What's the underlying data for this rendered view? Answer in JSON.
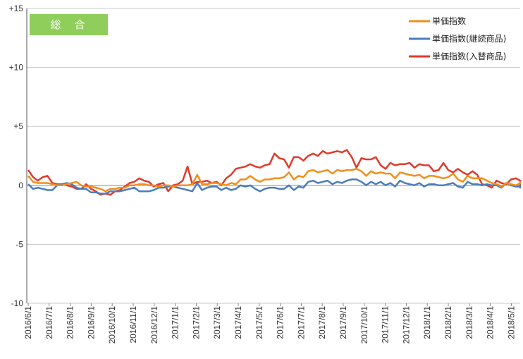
{
  "badge": {
    "label": "総　合",
    "color": "#8fce5a"
  },
  "chart_data": {
    "type": "line",
    "title": "",
    "xlabel": "",
    "ylabel": "",
    "ylim": [
      -10,
      15
    ],
    "yticks": [
      {
        "value": 15,
        "label": "+15"
      },
      {
        "value": 10,
        "label": "+10"
      },
      {
        "value": 5,
        "label": "+5"
      },
      {
        "value": 0,
        "label": "0"
      },
      {
        "value": -5,
        "label": "-5"
      },
      {
        "value": -10,
        "label": "-10"
      }
    ],
    "x_tick_labels": [
      "2016/6/1",
      "2016/7/1",
      "2016/8/1",
      "2016/9/1",
      "2016/10/1",
      "2016/11/1",
      "2016/12/1",
      "2017/1/1",
      "2017/2/1",
      "2017/3/1",
      "2017/4/1",
      "2017/5/1",
      "2017/6/1",
      "2017/7/1",
      "2017/8/1",
      "2017/9/1",
      "2017/10/1",
      "2017/11/1",
      "2017/12/1",
      "2018/1/1",
      "2018/2/1",
      "2018/3/1",
      "2018/4/1",
      "2018/5/1"
    ],
    "grid": "horizontal",
    "legend_position": "top-right",
    "points_per_month": 4.35,
    "series": [
      {
        "name": "単価指数",
        "color": "#f28e1c",
        "values": [
          0.8,
          0.3,
          0.2,
          0.2,
          0.2,
          0.1,
          0.0,
          0.0,
          0.1,
          0.2,
          0.3,
          0.0,
          -0.1,
          -0.1,
          -0.2,
          -0.3,
          -0.5,
          -0.3,
          -0.3,
          -0.2,
          -0.2,
          0.0,
          0.0,
          0.1,
          0.1,
          0.0,
          0.0,
          -0.1,
          0.0,
          0.0,
          -0.1,
          0.0,
          0.0,
          0.0,
          0.1,
          0.9,
          0.1,
          0.1,
          0.2,
          0.2,
          0.1,
          0.0,
          0.2,
          0.1,
          0.5,
          0.5,
          0.8,
          0.5,
          0.3,
          0.5,
          0.5,
          0.6,
          0.6,
          0.7,
          1.1,
          0.5,
          0.8,
          0.7,
          1.2,
          1.3,
          1.1,
          1.2,
          1.3,
          1.0,
          1.3,
          1.2,
          1.3,
          1.3,
          1.4,
          1.2,
          0.8,
          1.2,
          1.0,
          1.1,
          1.0,
          1.0,
          0.6,
          1.1,
          1.0,
          0.9,
          0.8,
          0.9,
          0.6,
          0.8,
          0.8,
          0.7,
          0.6,
          0.7,
          1.0,
          0.5,
          0.3,
          0.8,
          0.6,
          0.6,
          0.6,
          0.4,
          0.2,
          0.1,
          -0.1,
          0.2,
          0.1,
          0.0,
          0.2,
          0.3,
          0.3,
          0.1,
          0.1,
          0.1
        ]
      },
      {
        "name": "単価指数(継続商品)",
        "color": "#4a7ebb",
        "values": [
          0.1,
          -0.3,
          -0.2,
          -0.3,
          -0.4,
          -0.4,
          0.0,
          0.1,
          0.2,
          0.1,
          -0.2,
          -0.3,
          -0.3,
          -0.6,
          -0.6,
          -0.7,
          -0.7,
          -0.5,
          -0.5,
          -0.5,
          -0.4,
          -0.3,
          -0.2,
          -0.5,
          -0.5,
          -0.5,
          -0.4,
          -0.2,
          -0.2,
          -0.1,
          -0.1,
          -0.2,
          -0.3,
          -0.4,
          -0.5,
          0.2,
          -0.4,
          -0.2,
          -0.1,
          -0.1,
          -0.4,
          -0.2,
          -0.4,
          -0.3,
          0.0,
          -0.1,
          0.0,
          -0.3,
          -0.5,
          -0.3,
          -0.2,
          -0.2,
          -0.3,
          -0.3,
          0.0,
          -0.4,
          -0.1,
          -0.2,
          0.3,
          0.4,
          0.2,
          0.3,
          0.4,
          0.1,
          0.3,
          0.2,
          0.4,
          0.5,
          0.5,
          0.3,
          0.0,
          0.3,
          0.1,
          0.3,
          0.0,
          0.2,
          -0.1,
          0.4,
          0.2,
          0.1,
          0.0,
          0.2,
          -0.1,
          0.1,
          0.1,
          0.0,
          0.0,
          0.1,
          0.2,
          -0.1,
          -0.2,
          0.3,
          0.1,
          0.1,
          0.0,
          0.1,
          0.0,
          0.0,
          -0.2,
          0.2,
          0.0,
          -0.1,
          -0.1,
          0.0,
          0.0,
          -0.2,
          0.0,
          -0.1
        ]
      },
      {
        "name": "単価指数(入替商品)",
        "color": "#e03a2c",
        "values": [
          1.3,
          0.7,
          0.4,
          0.7,
          0.8,
          0.2,
          0.1,
          0.1,
          0.0,
          -0.1,
          -0.3,
          -0.3,
          0.1,
          -0.3,
          -0.5,
          -0.8,
          -0.7,
          -0.8,
          -0.5,
          -0.4,
          -0.1,
          0.2,
          0.3,
          0.6,
          0.4,
          0.3,
          -0.1,
          0.1,
          0.2,
          -0.5,
          0.0,
          0.1,
          0.4,
          1.6,
          0.1,
          0.3,
          0.3,
          0.4,
          0.2,
          0.3,
          0.0,
          0.6,
          0.9,
          1.4,
          1.5,
          1.6,
          1.8,
          1.6,
          1.5,
          1.7,
          1.8,
          2.7,
          2.3,
          2.2,
          1.5,
          2.4,
          2.4,
          2.1,
          2.5,
          2.7,
          2.5,
          2.9,
          2.7,
          2.8,
          2.9,
          2.8,
          3.0,
          2.4,
          1.5,
          2.3,
          2.2,
          2.2,
          2.4,
          1.7,
          1.4,
          1.9,
          1.7,
          1.8,
          1.8,
          1.9,
          1.5,
          1.8,
          1.7,
          1.7,
          1.2,
          1.3,
          1.9,
          1.3,
          1.1,
          1.4,
          1.1,
          0.9,
          1.2,
          0.9,
          0.1,
          0.0,
          -0.2,
          0.4,
          0.2,
          0.1,
          0.5,
          0.6,
          0.4,
          0.1,
          0.2,
          0.1
        ]
      }
    ]
  }
}
